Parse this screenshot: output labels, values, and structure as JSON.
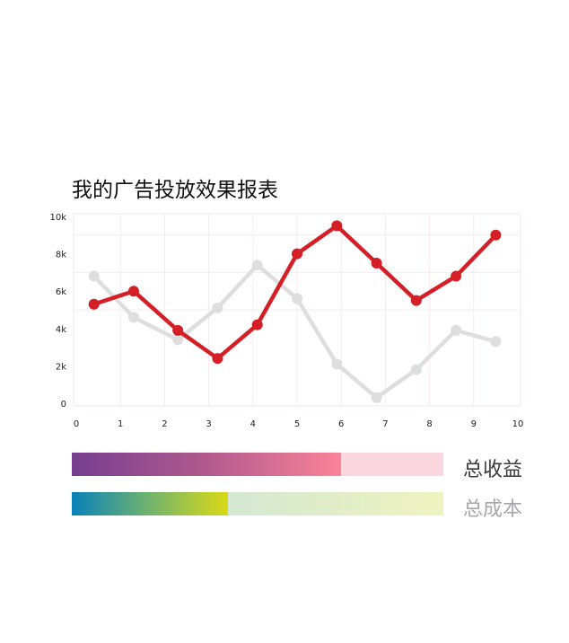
{
  "chart_data": {
    "type": "line",
    "title": "我的广告投放效果报表",
    "xlabel": "",
    "ylabel": "",
    "xlim": [
      0,
      10
    ],
    "ylim": [
      0,
      10000
    ],
    "x_ticks": [
      0,
      1,
      2,
      3,
      4,
      5,
      6,
      7,
      8,
      9,
      10
    ],
    "x_tick_labels": [
      "0",
      "1",
      "2",
      "3",
      "4",
      "5",
      "6",
      "7",
      "8",
      "9",
      "10"
    ],
    "y_ticks": [
      0,
      2000,
      4000,
      6000,
      8000,
      10000
    ],
    "y_tick_labels": [
      "0",
      "2k",
      "4k",
      "6k",
      "8k",
      "10k"
    ],
    "grid": true,
    "series": [
      {
        "color": "#dedede",
        "x": [
          0.4,
          1.3,
          2.3,
          3.2,
          4.1,
          5.0,
          5.9,
          6.8,
          7.7,
          8.6,
          9.5
        ],
        "y": [
          6800,
          4600,
          3400,
          5100,
          7400,
          5600,
          2100,
          300,
          1800,
          3900,
          3300
        ]
      },
      {
        "color": "#d41f26",
        "x": [
          0.4,
          1.3,
          2.3,
          3.2,
          4.1,
          5.0,
          5.9,
          6.8,
          7.7,
          8.6,
          9.5
        ],
        "y": [
          5300,
          6000,
          3900,
          2400,
          4200,
          8000,
          9500,
          7500,
          5500,
          6800,
          9000
        ]
      }
    ]
  },
  "legend": {
    "revenue": {
      "label": "总收益",
      "progress": 0.725,
      "gradient": [
        "#753e8e",
        "#b15a8d",
        "#fa8399"
      ],
      "track_color": "#fad6de"
    },
    "cost": {
      "label": "总成本",
      "progress": 0.42,
      "gradient": [
        "#0882b9",
        "#72b46c",
        "#dad916"
      ],
      "track_gradient": [
        "#c0dfe0",
        "#eff3bf"
      ]
    }
  }
}
